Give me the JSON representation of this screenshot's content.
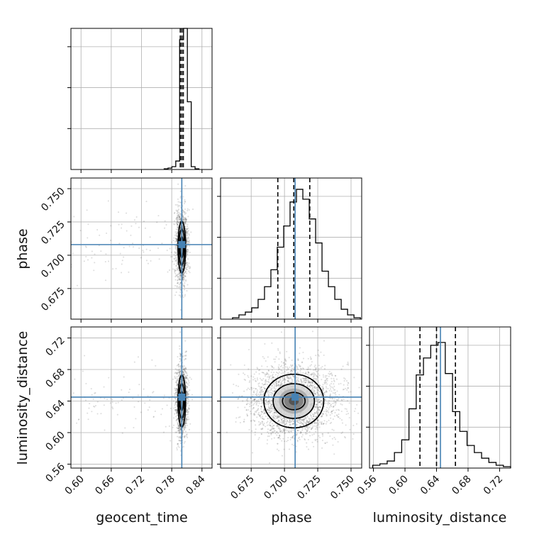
{
  "chart_data": {
    "type": "corner",
    "parameters": [
      {
        "name": "geocent_time",
        "label": "geocent_time",
        "range": [
          0.58,
          0.86
        ],
        "ticks": [
          "0.60",
          "0.66",
          "0.72",
          "0.78",
          "0.84"
        ],
        "tick_values": [
          0.6,
          0.66,
          0.72,
          0.78,
          0.84
        ]
      },
      {
        "name": "phase",
        "label": "phase",
        "range": [
          0.652,
          0.758
        ],
        "ticks": [
          "0.675",
          "0.700",
          "0.725",
          "0.750"
        ],
        "tick_values": [
          0.675,
          0.7,
          0.725,
          0.75
        ]
      },
      {
        "name": "luminosity_distance",
        "label": "luminosity_distance",
        "range": [
          0.555,
          0.734
        ],
        "ticks": [
          "0.56",
          "0.60",
          "0.64",
          "0.68",
          "0.72"
        ],
        "tick_values": [
          0.56,
          0.6,
          0.64,
          0.68,
          0.72
        ]
      }
    ],
    "truth_values": [
      0.8,
      0.708,
      0.645
    ],
    "truth_color": "#4682b4",
    "quantiles": [
      [
        0.797,
        0.8,
        0.803
      ],
      [
        0.695,
        0.707,
        0.719
      ],
      [
        0.619,
        0.64,
        0.664
      ]
    ],
    "histograms": [
      {
        "edges_start": 0.765,
        "edges_end": 0.834,
        "counts": [
          0.005,
          0.01,
          0.02,
          0.06,
          0.92,
          1.0,
          0.48,
          0.02,
          0.005
        ]
      },
      {
        "edges_start": 0.661,
        "edges_end": 0.757,
        "counts": [
          0.01,
          0.03,
          0.05,
          0.08,
          0.14,
          0.23,
          0.35,
          0.51,
          0.66,
          0.83,
          0.92,
          0.85,
          0.71,
          0.54,
          0.34,
          0.23,
          0.14,
          0.07,
          0.03,
          0.01
        ]
      },
      {
        "edges_start": 0.559,
        "edges_end": 0.734,
        "counts": [
          0.02,
          0.03,
          0.05,
          0.11,
          0.2,
          0.42,
          0.66,
          0.78,
          0.87,
          0.89,
          0.67,
          0.4,
          0.26,
          0.16,
          0.11,
          0.07,
          0.04,
          0.02,
          0.01
        ]
      }
    ],
    "contour_widths": [
      {
        "pair": [
          0,
          1
        ],
        "center": [
          0.8,
          0.706
        ],
        "levels": [
          [
            0.0035,
            0.008
          ],
          [
            0.0055,
            0.0135
          ],
          [
            0.0075,
            0.0195
          ]
        ]
      },
      {
        "pair": [
          0,
          2
        ],
        "center": [
          0.8,
          0.64
        ],
        "levels": [
          [
            0.0035,
            0.012
          ],
          [
            0.0055,
            0.022
          ],
          [
            0.0075,
            0.033
          ]
        ]
      },
      {
        "pair": [
          1,
          2
        ],
        "center": [
          0.707,
          0.64
        ],
        "levels": [
          [
            0.0085,
            0.011
          ],
          [
            0.0155,
            0.022
          ],
          [
            0.0225,
            0.034
          ]
        ]
      }
    ],
    "grid": true
  }
}
